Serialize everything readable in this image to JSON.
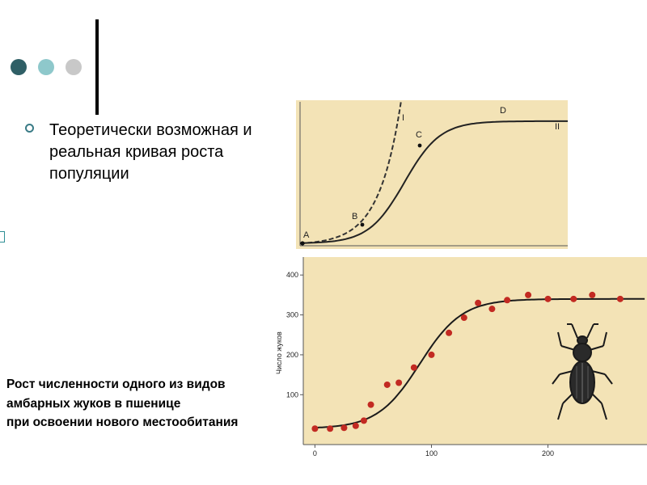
{
  "slide": {
    "main_text": "Теоретически возможная и реальная кривая роста популяции",
    "caption_lines": [
      "Рост численности одного из видов",
      "амбарных жуков в пшенице",
      "при освоении нового местообитания"
    ],
    "colors": {
      "accent_dark": "#2f5f66",
      "accent_light": "#8ec8cb",
      "accent_grey": "#c8c8c8",
      "chart_bg": "#f3e3b6",
      "point_color": "#c22a22"
    }
  },
  "chart_data": [
    {
      "type": "line",
      "title": "",
      "xlabel": "",
      "ylabel": "",
      "point_labels": [
        "A",
        "B",
        "C",
        "D"
      ],
      "series": [
        {
          "name": "I",
          "style": "dashed",
          "shape": "exponential"
        },
        {
          "name": "II",
          "style": "solid",
          "shape": "logistic"
        }
      ]
    },
    {
      "type": "scatter",
      "title": "",
      "xlabel": "",
      "ylabel": "Число жуков",
      "xlim": [
        -10,
        285
      ],
      "ylim": [
        -25,
        445
      ],
      "x_ticks": [
        0,
        100,
        200
      ],
      "y_ticks": [
        100,
        200,
        300,
        400
      ],
      "fit_curve": {
        "type": "logistic",
        "K": 340,
        "r": 0.055,
        "t0": 90,
        "base": 15
      },
      "points": [
        [
          0,
          15
        ],
        [
          13,
          15
        ],
        [
          25,
          17
        ],
        [
          35,
          22
        ],
        [
          42,
          35
        ],
        [
          48,
          75
        ],
        [
          62,
          125
        ],
        [
          72,
          130
        ],
        [
          85,
          168
        ],
        [
          100,
          200
        ],
        [
          115,
          255
        ],
        [
          128,
          293
        ],
        [
          140,
          330
        ],
        [
          152,
          315
        ],
        [
          165,
          337
        ],
        [
          183,
          350
        ],
        [
          200,
          340
        ],
        [
          222,
          340
        ],
        [
          238,
          350
        ],
        [
          262,
          340
        ]
      ]
    }
  ]
}
